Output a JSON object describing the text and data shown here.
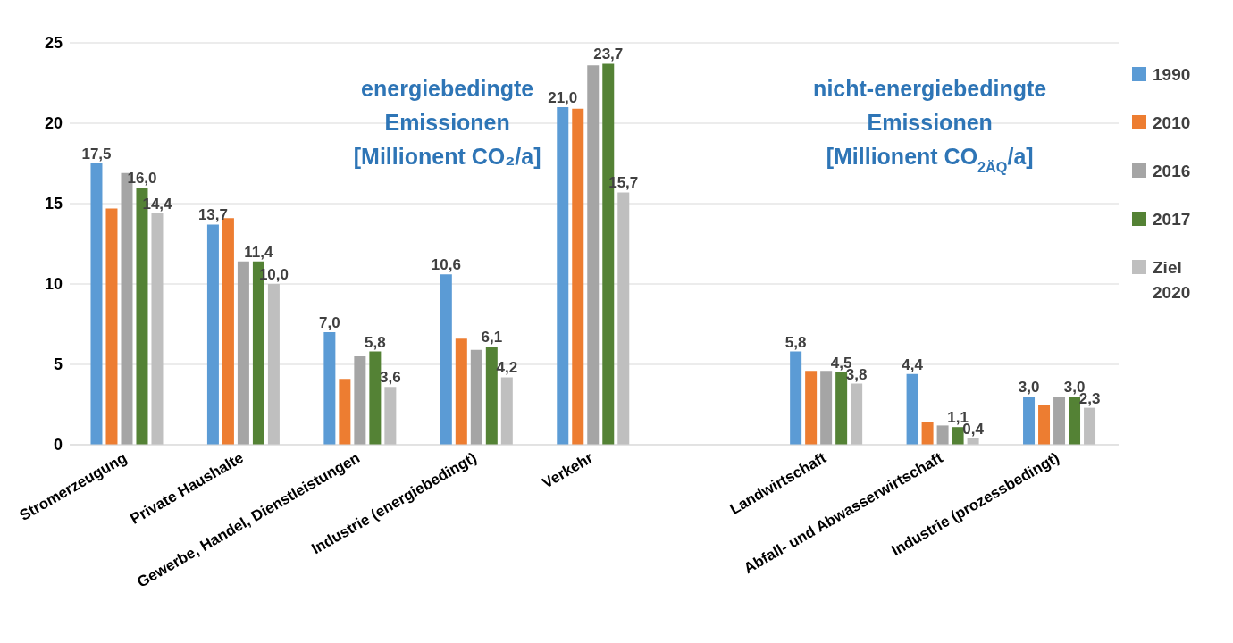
{
  "chart_data": {
    "type": "bar",
    "categories": [
      "Stromerzeugung",
      "Private Haushalte",
      "Gewerbe, Handel, Dienstleistungen",
      "Industrie (energiebedingt)",
      "Verkehr",
      null,
      "Landwirtschaft",
      "Abfall- und Abwasserwirtschaft",
      "Industrie (prozessbedingt)"
    ],
    "series": [
      {
        "name": "1990",
        "color": "#5b9bd5",
        "values": [
          17.5,
          13.7,
          7.0,
          10.6,
          21.0,
          null,
          5.8,
          4.4,
          3.0
        ],
        "value_labels": [
          "17,5",
          "13,7",
          "7,0",
          "10,6",
          "21,0",
          null,
          "5,8",
          "4,4",
          "3,0"
        ]
      },
      {
        "name": "2010",
        "color": "#ed7d31",
        "values": [
          14.7,
          14.1,
          4.1,
          6.6,
          20.9,
          null,
          4.6,
          1.4,
          2.5
        ]
      },
      {
        "name": "2016",
        "color": "#a5a5a5",
        "values": [
          16.9,
          11.4,
          5.5,
          5.9,
          23.6,
          null,
          4.6,
          1.2,
          3.0
        ]
      },
      {
        "name": "2017",
        "color": "#548235",
        "values": [
          16.0,
          11.4,
          5.8,
          6.1,
          23.7,
          null,
          4.5,
          1.1,
          3.0
        ],
        "value_labels": [
          "16,0",
          "11,4",
          "5,8",
          "6,1",
          "23,7",
          null,
          "4,5",
          "1,1",
          "3,0"
        ]
      },
      {
        "name": "Ziel 2020",
        "color": "#bfbfbf",
        "values": [
          14.4,
          10.0,
          3.6,
          4.2,
          15.7,
          null,
          3.8,
          0.4,
          2.3
        ],
        "value_labels": [
          "14,4",
          "10,0",
          "3,6",
          "4,2",
          "15,7",
          null,
          "3,8",
          "0,4",
          "2,3"
        ]
      }
    ],
    "ylim": [
      0,
      25
    ],
    "yticks": [
      0,
      5,
      10,
      15,
      20,
      25
    ],
    "grid": "y",
    "legend": "right",
    "annotations": [
      "energiebedingte Emissionen [Millionent CO₂/a]",
      "nicht-energiebedingte Emissionen [Millionent CO$_{2ÄQ}$/a]"
    ]
  }
}
